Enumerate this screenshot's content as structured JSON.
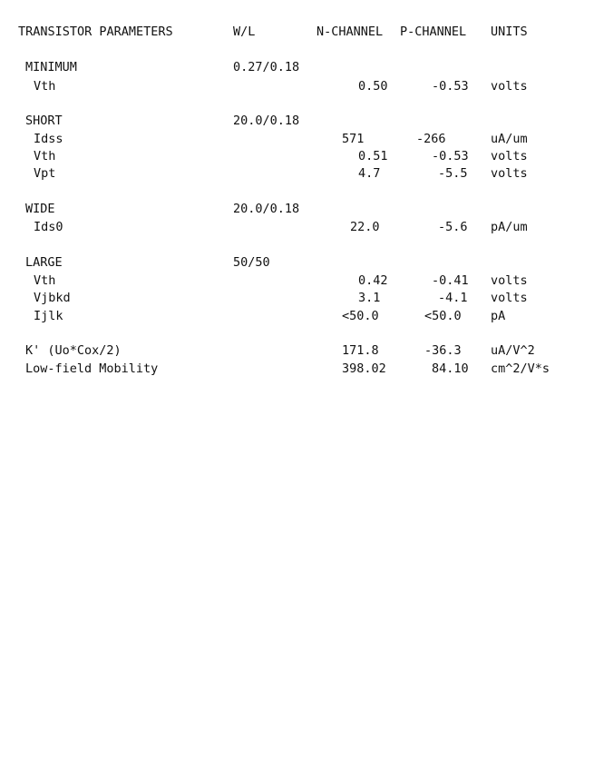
{
  "header": {
    "param": "TRANSISTOR PARAMETERS",
    "wl": "W/L",
    "n": "N-CHANNEL",
    "p": "P-CHANNEL",
    "units": "UNITS"
  },
  "minimum": {
    "title": "MINIMUM",
    "wl": "0.27/0.18",
    "rows": [
      {
        "name": "Vth",
        "n": "0.50",
        "p": "-0.53",
        "unit": "volts"
      }
    ]
  },
  "short": {
    "title": "SHORT",
    "wl": "20.0/0.18",
    "rows": [
      {
        "name": "Idss",
        "n": "571",
        "p": "-266",
        "unit": "uA/um"
      },
      {
        "name": "Vth",
        "n": "0.51",
        "p": "-0.53",
        "unit": "volts"
      },
      {
        "name": "Vpt",
        "n": "4.7",
        "p": "-5.5",
        "unit": "volts"
      }
    ]
  },
  "wide": {
    "title": "WIDE",
    "wl": "20.0/0.18",
    "rows": [
      {
        "name": "Ids0",
        "n": "22.0",
        "p": "-5.6",
        "unit": "pA/um"
      }
    ]
  },
  "large": {
    "title": "LARGE",
    "wl": "50/50",
    "rows": [
      {
        "name": "Vth",
        "n": "0.42",
        "p": "-0.41",
        "unit": "volts"
      },
      {
        "name": "Vjbkd",
        "n": "3.1",
        "p": "-4.1",
        "unit": "volts"
      },
      {
        "name": "Ijlk",
        "n": "<50.0",
        "p": "<50.0",
        "unit": "pA"
      }
    ]
  },
  "kprime": {
    "name": "K' (Uo*Cox/2)",
    "n": "171.8",
    "p": "-36.3",
    "unit": "uA/V^2"
  },
  "mobility": {
    "name": "Low-field Mobility",
    "n": "398.02",
    "p": "84.10",
    "unit": "cm^2/V*s"
  }
}
